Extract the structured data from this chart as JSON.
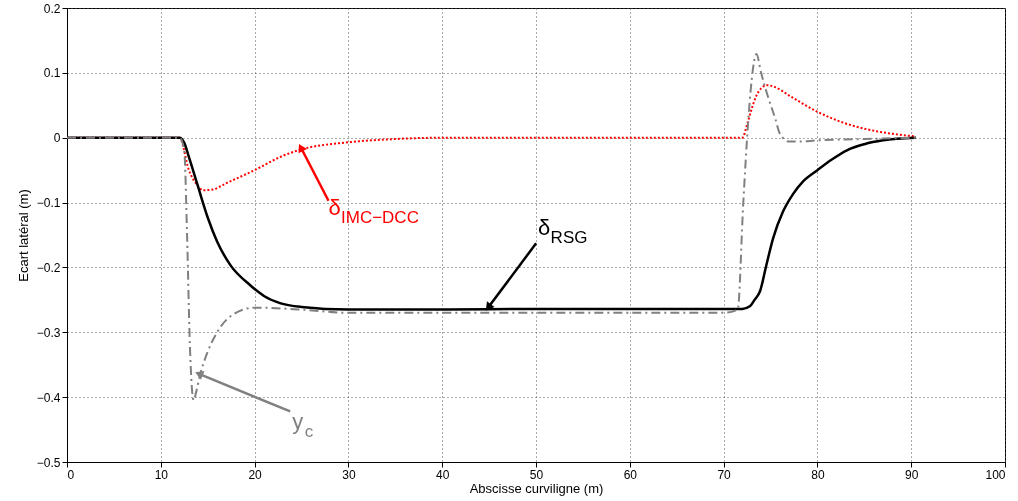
{
  "chart_data": {
    "type": "line",
    "xlabel": "Abscisse curviligne (m)",
    "ylabel": "Ecart latéral (m)",
    "xlim": [
      0,
      100
    ],
    "xticks": [
      0,
      10,
      20,
      30,
      40,
      50,
      60,
      70,
      80,
      90,
      100
    ],
    "ylim": [
      -0.5,
      0.2
    ],
    "yticks": [
      -0.5,
      -0.4,
      -0.3,
      -0.2,
      -0.1,
      0,
      0.1,
      0.2
    ],
    "grid": true,
    "series": [
      {
        "color": "#ff0000",
        "line_style": "dotted",
        "x": [
          0,
          12,
          13,
          14,
          14.5,
          15.5,
          17,
          20,
          23,
          25,
          30,
          35,
          40,
          72,
          72.5,
          73,
          73.5,
          74,
          74.6,
          75.5,
          77,
          80,
          83,
          85,
          88,
          90.5
        ],
        "values": [
          0,
          0,
          -0.05,
          -0.075,
          -0.081,
          -0.08,
          -0.07,
          -0.05,
          -0.028,
          -0.018,
          -0.007,
          -0.002,
          0,
          0,
          0.02,
          0.045,
          0.065,
          0.076,
          0.081,
          0.078,
          0.065,
          0.04,
          0.022,
          0.014,
          0.006,
          0.002
        ]
      },
      {
        "color": "#000000",
        "line_style": "solid",
        "x": [
          0,
          12,
          12.5,
          13,
          13.9,
          15,
          16,
          17.4,
          19.5,
          21,
          22.7,
          25,
          30,
          40,
          50,
          60,
          72,
          72.8,
          73.3,
          73.9,
          74.5,
          75.3,
          76.3,
          77.4,
          78.5,
          80,
          81.5,
          83.2,
          85,
          87,
          90.5
        ],
        "values": [
          0,
          0,
          -0.008,
          -0.03,
          -0.072,
          -0.123,
          -0.16,
          -0.196,
          -0.227,
          -0.244,
          -0.255,
          -0.261,
          -0.265,
          -0.265,
          -0.264,
          -0.264,
          -0.264,
          -0.26,
          -0.25,
          -0.236,
          -0.2,
          -0.154,
          -0.115,
          -0.087,
          -0.067,
          -0.05,
          -0.034,
          -0.019,
          -0.01,
          -0.004,
          0
        ]
      },
      {
        "color": "#808080",
        "line_style": "dashed",
        "x": [
          0,
          12,
          12.5,
          12.8,
          13.1,
          13.5,
          13.8,
          14.2,
          15,
          16,
          18,
          20,
          25,
          30,
          40,
          50,
          60,
          70,
          71.5,
          72.1,
          72.6,
          73,
          73.5,
          74,
          74.8,
          75.5,
          76,
          77,
          78,
          80,
          85,
          90.5
        ],
        "values": [
          0,
          0,
          -0.02,
          -0.15,
          -0.32,
          -0.405,
          -0.39,
          -0.365,
          -0.33,
          -0.3,
          -0.27,
          -0.262,
          -0.265,
          -0.27,
          -0.27,
          -0.27,
          -0.27,
          -0.27,
          -0.265,
          -0.1,
          0.02,
          0.09,
          0.129,
          0.1,
          0.06,
          0.03,
          0.006,
          -0.006,
          -0.006,
          -0.004,
          -0.002,
          0
        ]
      }
    ],
    "annotations": [
      {
        "text": "δ$_{IMC−DCC}$",
        "x": 25,
        "y": -0.017
      },
      {
        "text": "δ$_{RSG}$",
        "x": 45,
        "y": -0.26
      },
      {
        "text": "y$_{c}$",
        "x": 14.2,
        "y": -0.365
      }
    ]
  }
}
